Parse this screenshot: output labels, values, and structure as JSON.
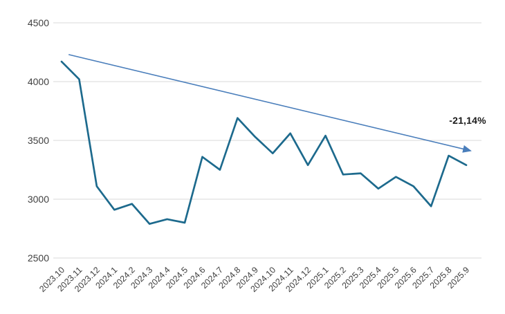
{
  "chart_data": {
    "type": "line",
    "title": "",
    "xlabel": "",
    "ylabel": "",
    "categories": [
      "2023.10",
      "2023.11",
      "2023.12",
      "2024.1",
      "2024.2",
      "2024.3",
      "2024.4",
      "2024.5",
      "2024.6",
      "2024.7",
      "2024.8",
      "2024.9",
      "2024.10",
      "2024.11",
      "2024.12",
      "2025.1",
      "2025.2",
      "2025.3",
      "2025.4",
      "2025.5",
      "2025.6",
      "2025.7",
      "2025.8",
      "2025.9"
    ],
    "series": [
      {
        "name": "value",
        "color": "#1d6a8d",
        "values": [
          4170,
          4020,
          3110,
          2910,
          2960,
          2790,
          2830,
          2800,
          3360,
          3250,
          3690,
          3530,
          3390,
          3560,
          3290,
          3540,
          3210,
          3220,
          3090,
          3190,
          3110,
          2940,
          3370,
          3290
        ]
      }
    ],
    "trendline": {
      "label": "-21,14%",
      "color": "#4a7ebb",
      "start": {
        "x": 0.4,
        "y": 4230
      },
      "end": {
        "x": 23.25,
        "y": 3412
      }
    },
    "ylim": [
      2500,
      4500
    ],
    "yticks": [
      2500,
      3000,
      3500,
      4000,
      4500
    ],
    "grid": true,
    "legend": "none",
    "colors": {
      "grid": "#d8d8d8",
      "tick_text": "#3f3f3f",
      "annotation_text": "#1a1a1a",
      "background": "#ffffff"
    }
  }
}
